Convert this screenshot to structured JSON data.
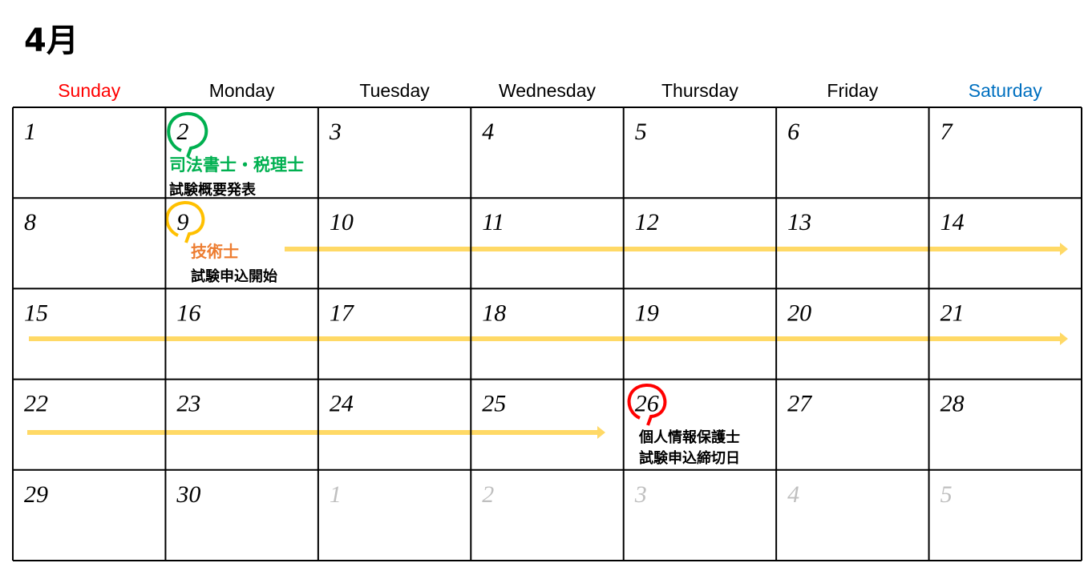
{
  "title": "4月",
  "weekdays": [
    "Sunday",
    "Monday",
    "Tuesday",
    "Wednesday",
    "Thursday",
    "Friday",
    "Saturday"
  ],
  "weeks": [
    [
      1,
      2,
      3,
      4,
      5,
      6,
      7
    ],
    [
      8,
      9,
      10,
      11,
      12,
      13,
      14
    ],
    [
      15,
      16,
      17,
      18,
      19,
      20,
      21
    ],
    [
      22,
      23,
      24,
      25,
      26,
      27,
      28
    ],
    [
      29,
      30
    ]
  ],
  "next_month": [
    1,
    2,
    3,
    4,
    5
  ],
  "events": [
    {
      "lines": [
        "司法書士・税理士",
        "試験概要発表"
      ]
    },
    {
      "lines": [
        "技術士",
        "試験申込開始"
      ]
    },
    {
      "lines": [
        "個人情報保護士",
        "試験申込締切日"
      ]
    }
  ]
}
